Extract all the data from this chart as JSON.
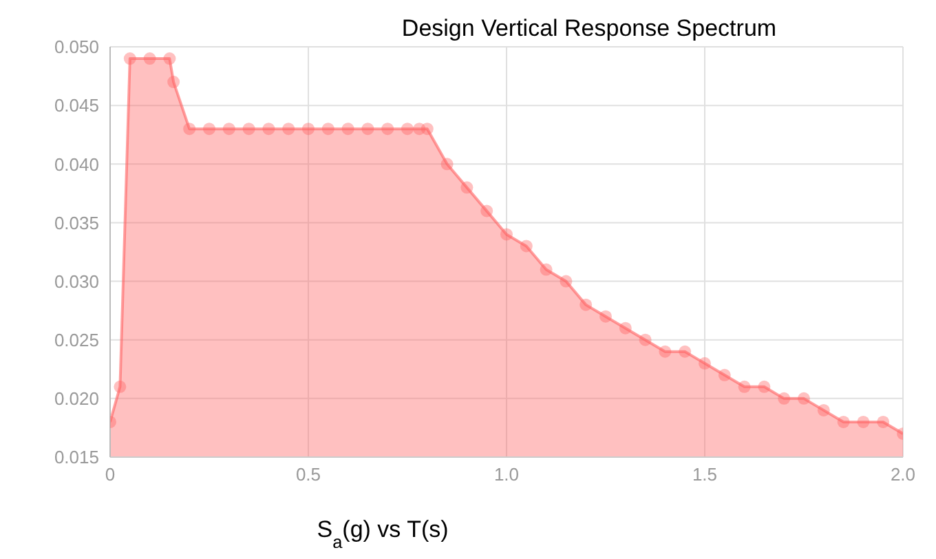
{
  "chart_data": {
    "type": "area",
    "title": "Design Vertical Response Spectrum",
    "xlabel": "S$_{a}$(g) vs T(s)",
    "x": [
      0,
      0.025,
      0.05,
      0.1,
      0.15,
      0.16,
      0.2,
      0.25,
      0.3,
      0.35,
      0.4,
      0.45,
      0.5,
      0.55,
      0.6,
      0.65,
      0.7,
      0.75,
      0.78,
      0.8,
      0.85,
      0.9,
      0.95,
      1.0,
      1.05,
      1.1,
      1.15,
      1.2,
      1.25,
      1.3,
      1.35,
      1.4,
      1.45,
      1.5,
      1.55,
      1.6,
      1.65,
      1.7,
      1.75,
      1.8,
      1.85,
      1.9,
      1.95,
      2.0
    ],
    "series": [
      {
        "color": "#ff6161",
        "values": [
          0.018,
          0.021,
          0.049,
          0.049,
          0.049,
          0.047,
          0.043,
          0.043,
          0.043,
          0.043,
          0.043,
          0.043,
          0.043,
          0.043,
          0.043,
          0.043,
          0.043,
          0.043,
          0.043,
          0.043,
          0.04,
          0.038,
          0.036,
          0.034,
          0.033,
          0.031,
          0.03,
          0.028,
          0.027,
          0.026,
          0.025,
          0.024,
          0.024,
          0.023,
          0.022,
          0.021,
          0.021,
          0.02,
          0.02,
          0.019,
          0.018,
          0.018,
          0.018,
          0.017
        ]
      }
    ],
    "xlim": [
      0,
      2
    ],
    "xticks": [
      0,
      0.5,
      {
        "value": 1,
        "label": "1.0"
      },
      1.5,
      {
        "value": 2,
        "label": "2.0"
      }
    ],
    "ylim": [
      0.015,
      0.05
    ],
    "yticks": [
      0.015,
      {
        "value": 0.02,
        "label": "0.020"
      },
      0.025,
      {
        "value": 0.03,
        "label": "0.030"
      },
      0.035,
      {
        "value": 0.04,
        "label": "0.040"
      },
      0.045,
      {
        "value": 0.05,
        "label": "0.050"
      }
    ],
    "grid": true,
    "marker": "circle",
    "legend": false
  }
}
